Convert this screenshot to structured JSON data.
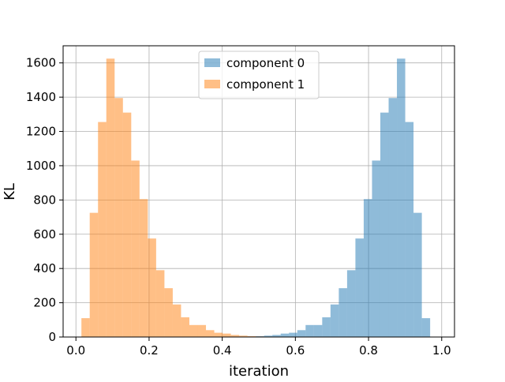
{
  "chart_data": {
    "type": "bar",
    "subtype": "histogram",
    "title": "",
    "xlabel": "iteration",
    "ylabel": "KL",
    "xlim": [
      -0.035,
      1.035
    ],
    "ylim": [
      0,
      1700
    ],
    "xticks": [
      0.0,
      0.2,
      0.4,
      0.6,
      0.8,
      1.0
    ],
    "xtick_labels": [
      "0.0",
      "0.2",
      "0.4",
      "0.6",
      "0.8",
      "1.0"
    ],
    "yticks": [
      0,
      200,
      400,
      600,
      800,
      1000,
      1200,
      1400,
      1600
    ],
    "ytick_labels": [
      "0",
      "200",
      "400",
      "600",
      "800",
      "1000",
      "1200",
      "1400",
      "1600"
    ],
    "grid": true,
    "legend_position": "top-center",
    "bin_edges": [
      0.015,
      0.0377,
      0.0604,
      0.0831,
      0.1058,
      0.1285,
      0.1512,
      0.1739,
      0.1966,
      0.2193,
      0.242,
      0.2647,
      0.2874,
      0.3101,
      0.3328,
      0.3555,
      0.3782,
      0.4009,
      0.4236,
      0.4463,
      0.469,
      0.4917,
      0.5144,
      0.5371,
      0.5598,
      0.5825,
      0.6052,
      0.6279,
      0.6506,
      0.6733,
      0.696,
      0.7187,
      0.7414,
      0.7641,
      0.7868,
      0.8095,
      0.8322,
      0.8549,
      0.8776,
      0.9003,
      0.923,
      0.9457,
      0.9684,
      0.9911
    ],
    "series": [
      {
        "name": "component 0",
        "color": "#1f77b4",
        "opacity": 0.5,
        "values": [
          0,
          0,
          0,
          0,
          0,
          0,
          0,
          0,
          0,
          0,
          0,
          0,
          0,
          0,
          0,
          0,
          0,
          0,
          0,
          2,
          3,
          5,
          8,
          12,
          20,
          25,
          40,
          70,
          70,
          115,
          190,
          285,
          390,
          575,
          805,
          1030,
          1310,
          1395,
          1625,
          1255,
          725,
          110,
          0
        ]
      },
      {
        "name": "component 1",
        "color": "#ff7f0e",
        "opacity": 0.5,
        "values": [
          110,
          725,
          1255,
          1625,
          1395,
          1310,
          1030,
          805,
          575,
          390,
          285,
          190,
          115,
          70,
          70,
          40,
          25,
          20,
          12,
          8,
          5,
          3,
          2,
          0,
          0,
          0,
          0,
          0,
          0,
          0,
          0,
          0,
          0,
          0,
          0,
          0,
          0,
          0,
          0,
          0,
          0,
          0,
          0
        ]
      }
    ]
  }
}
